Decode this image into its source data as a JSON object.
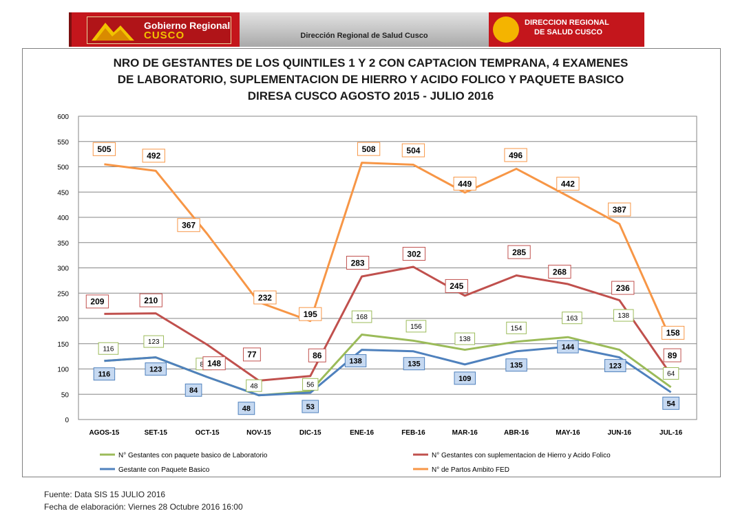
{
  "header": {
    "left_logo_line1": "Gobierno Regional",
    "left_logo_line2": "CUSCO",
    "center_text": "Dirección Regional de Salud Cusco",
    "right_logo_line1": "DIRECCION REGIONAL",
    "right_logo_line2": "DE SALUD CUSCO"
  },
  "chart_data": {
    "type": "line",
    "title_lines": [
      "NRO  DE GESTANTES DE LOS QUINTILES 1 Y 2 CON CAPTACION TEMPRANA, 4 EXAMENES",
      "DE LABORATORIO, SUPLEMENTACION DE HIERRO Y ACIDO FOLICO Y PAQUETE BASICO",
      "DIRESA CUSCO  AGOSTO 2015 - JULIO 2016"
    ],
    "categories": [
      "AGOS-15",
      "SET-15",
      "OCT-15",
      "NOV-15",
      "DIC-15",
      "ENE-16",
      "FEB-16",
      "MAR-16",
      "ABR-16",
      "MAY-16",
      "JUN-16",
      "JUL-16"
    ],
    "ylim": [
      0,
      600
    ],
    "yticks": [
      0,
      50,
      100,
      150,
      200,
      250,
      300,
      350,
      400,
      450,
      500,
      550,
      600
    ],
    "grid": true,
    "legend_position": "bottom",
    "series": [
      {
        "name": "N° Gestantes con paquete basico de Laboratorio",
        "color": "#9bbb59",
        "label_fill": "#ffffff",
        "label_bold": false,
        "label_size": 10,
        "values": [
          116,
          123,
          84,
          48,
          56,
          168,
          156,
          138,
          154,
          163,
          138,
          64
        ]
      },
      {
        "name": "N° Gestantes con suplementacion de Hierro y Acido Folico",
        "color": "#c0504d",
        "label_fill": "#ffffff",
        "label_bold": true,
        "label_size": 12,
        "values": [
          209,
          210,
          148,
          77,
          86,
          283,
          302,
          245,
          285,
          268,
          236,
          89
        ]
      },
      {
        "name": "Gestante con Paquete Basico",
        "color": "#4f81bd",
        "label_fill": "#c6d9f1",
        "label_bold": true,
        "label_size": 11,
        "values": [
          116,
          123,
          84,
          48,
          53,
          138,
          135,
          109,
          135,
          144,
          123,
          54
        ]
      },
      {
        "name": "N° de Partos Ambito FED",
        "color": "#f79646",
        "label_fill": "#ffffff",
        "label_bold": true,
        "label_size": 12,
        "values": [
          505,
          492,
          367,
          232,
          195,
          508,
          504,
          449,
          496,
          442,
          387,
          158
        ]
      }
    ]
  },
  "footer": {
    "source": "Fuente: Data SIS  15 JULIO 2016",
    "date": "Fecha de elaboración: Viernes 28 Octubre 2016 16:00"
  }
}
